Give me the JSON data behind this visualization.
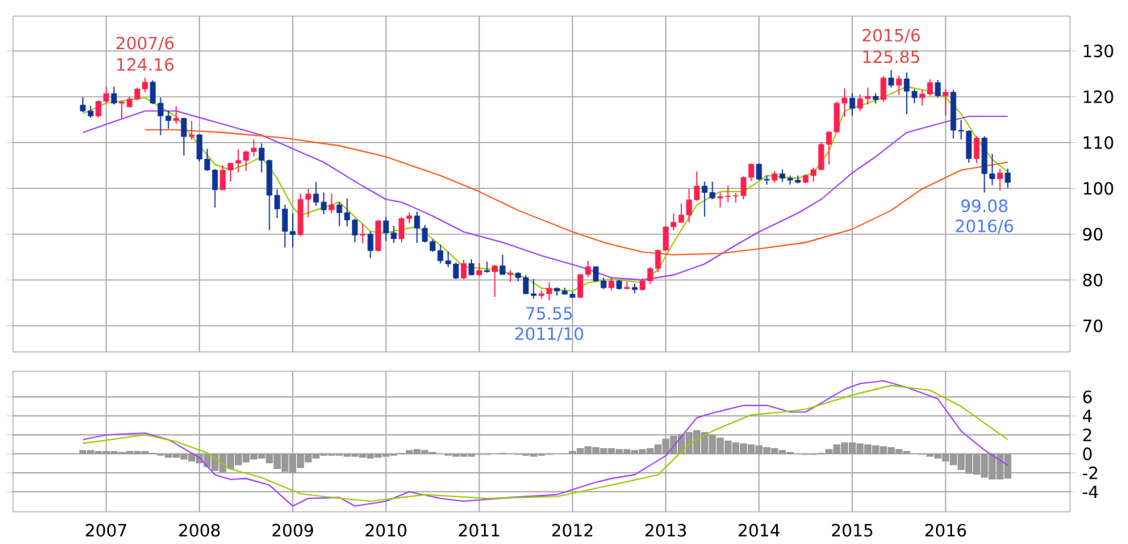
{
  "chart_data": [
    {
      "type": "candlestick",
      "xlim": [
        "2006-01",
        "2017-05"
      ],
      "xticks": [
        "2007",
        "2008",
        "2009",
        "2010",
        "2011",
        "2012",
        "2013",
        "2014",
        "2015",
        "2016"
      ],
      "ylim": [
        64.3,
        137.6
      ],
      "yticks": [
        70,
        80,
        90,
        100,
        110,
        120,
        130
      ],
      "grid": true,
      "tick_labels": "y",
      "x": [
        "2006-10",
        "2006-11",
        "2006-12",
        "2007-01",
        "2007-02",
        "2007-03",
        "2007-04",
        "2007-05",
        "2007-06",
        "2007-07",
        "2007-08",
        "2007-09",
        "2007-10",
        "2007-11",
        "2007-12",
        "2008-01",
        "2008-02",
        "2008-03",
        "2008-04",
        "2008-05",
        "2008-06",
        "2008-07",
        "2008-08",
        "2008-09",
        "2008-10",
        "2008-11",
        "2008-12",
        "2009-01",
        "2009-02",
        "2009-03",
        "2009-04",
        "2009-05",
        "2009-06",
        "2009-07",
        "2009-08",
        "2009-09",
        "2009-10",
        "2009-11",
        "2009-12",
        "2010-01",
        "2010-02",
        "2010-03",
        "2010-04",
        "2010-05",
        "2010-06",
        "2010-07",
        "2010-08",
        "2010-09",
        "2010-10",
        "2010-11",
        "2010-12",
        "2011-01",
        "2011-02",
        "2011-03",
        "2011-04",
        "2011-05",
        "2011-06",
        "2011-07",
        "2011-08",
        "2011-09",
        "2011-10",
        "2011-11",
        "2011-12",
        "2012-01",
        "2012-02",
        "2012-03",
        "2012-04",
        "2012-05",
        "2012-06",
        "2012-07",
        "2012-08",
        "2012-09",
        "2012-10",
        "2012-11",
        "2012-12",
        "2013-01",
        "2013-02",
        "2013-03",
        "2013-04",
        "2013-05",
        "2013-06",
        "2013-07",
        "2013-08",
        "2013-09",
        "2013-10",
        "2013-11",
        "2013-12",
        "2014-01",
        "2014-02",
        "2014-03",
        "2014-04",
        "2014-05",
        "2014-06",
        "2014-07",
        "2014-08",
        "2014-09",
        "2014-10",
        "2014-11",
        "2014-12",
        "2015-01",
        "2015-02",
        "2015-03",
        "2015-04",
        "2015-05",
        "2015-06",
        "2015-07",
        "2015-08",
        "2015-09",
        "2015-10",
        "2015-11",
        "2015-12",
        "2016-01",
        "2016-02",
        "2016-03",
        "2016-04",
        "2016-05",
        "2016-06",
        "2016-07",
        "2016-08",
        "2016-09"
      ],
      "ohlc": [
        [
          118.2,
          119.9,
          116.6,
          116.9
        ],
        [
          116.9,
          118.0,
          115.4,
          115.8
        ],
        [
          115.8,
          119.2,
          115.5,
          119.0
        ],
        [
          119.0,
          122.2,
          118.5,
          120.7
        ],
        [
          120.7,
          122.2,
          118.3,
          118.6
        ],
        [
          118.6,
          119.0,
          115.2,
          118.9
        ],
        [
          117.8,
          120.0,
          117.6,
          119.5
        ],
        [
          119.5,
          122.0,
          119.2,
          121.7
        ],
        [
          121.7,
          124.16,
          121.0,
          123.2
        ],
        [
          123.2,
          123.6,
          118.4,
          118.6
        ],
        [
          118.6,
          119.8,
          111.6,
          115.8
        ],
        [
          115.8,
          117.0,
          113.0,
          114.8
        ],
        [
          114.8,
          117.9,
          114.1,
          115.3
        ],
        [
          115.3,
          115.4,
          107.2,
          111.3
        ],
        [
          111.3,
          114.7,
          110.6,
          111.7
        ],
        [
          111.7,
          111.8,
          105.9,
          106.4
        ],
        [
          106.4,
          108.6,
          103.8,
          104.0
        ],
        [
          104.0,
          104.2,
          95.8,
          99.7
        ],
        [
          99.7,
          105.0,
          99.7,
          104.0
        ],
        [
          104.0,
          105.5,
          101.5,
          105.5
        ],
        [
          105.5,
          108.5,
          103.5,
          106.1
        ],
        [
          106.1,
          108.3,
          103.8,
          108.0
        ],
        [
          108.0,
          110.7,
          107.0,
          108.8
        ],
        [
          108.8,
          109.8,
          103.5,
          106.1
        ],
        [
          106.1,
          106.3,
          90.9,
          98.5
        ],
        [
          98.5,
          99.8,
          93.5,
          95.5
        ],
        [
          95.5,
          96.4,
          87.1,
          90.6
        ],
        [
          90.6,
          94.5,
          87.1,
          89.9
        ],
        [
          89.9,
          98.8,
          89.6,
          97.6
        ],
        [
          97.6,
          100.0,
          93.7,
          98.8
        ],
        [
          98.8,
          101.4,
          96.2,
          97.0
        ],
        [
          97.0,
          99.1,
          94.4,
          95.3
        ],
        [
          95.3,
          98.9,
          94.6,
          96.4
        ],
        [
          96.4,
          97.0,
          91.7,
          94.7
        ],
        [
          94.7,
          97.8,
          91.7,
          93.1
        ],
        [
          93.1,
          93.4,
          88.2,
          89.8
        ],
        [
          89.8,
          92.3,
          88.0,
          90.0
        ],
        [
          90.0,
          90.6,
          84.8,
          86.4
        ],
        [
          86.4,
          93.1,
          86.3,
          92.9
        ],
        [
          92.9,
          93.8,
          88.5,
          90.3
        ],
        [
          90.3,
          91.8,
          88.1,
          89.0
        ],
        [
          89.0,
          93.7,
          88.2,
          93.4
        ],
        [
          93.4,
          94.7,
          92.4,
          94.0
        ],
        [
          94.0,
          94.9,
          88.1,
          91.3
        ],
        [
          91.3,
          92.0,
          88.2,
          88.4
        ],
        [
          88.4,
          88.9,
          86.2,
          86.4
        ],
        [
          86.4,
          87.7,
          83.6,
          84.2
        ],
        [
          84.2,
          86.2,
          82.8,
          83.5
        ],
        [
          83.5,
          83.8,
          80.2,
          80.4
        ],
        [
          80.4,
          84.4,
          80.2,
          83.6
        ],
        [
          83.6,
          84.5,
          81.1,
          81.1
        ],
        [
          81.1,
          83.7,
          80.9,
          82.1
        ],
        [
          82.1,
          84.0,
          81.6,
          81.8
        ],
        [
          81.8,
          83.3,
          76.3,
          83.1
        ],
        [
          83.1,
          85.5,
          81.2,
          81.2
        ],
        [
          81.2,
          82.2,
          79.6,
          81.5
        ],
        [
          81.5,
          81.7,
          79.7,
          80.5
        ],
        [
          80.5,
          81.1,
          76.9,
          77.0
        ],
        [
          77.0,
          80.2,
          75.9,
          76.6
        ],
        [
          76.6,
          77.8,
          75.9,
          77.0
        ],
        [
          77.0,
          79.5,
          75.55,
          78.2
        ],
        [
          78.2,
          78.3,
          76.6,
          77.6
        ],
        [
          77.6,
          78.3,
          76.8,
          76.9
        ],
        [
          76.9,
          77.4,
          76.1,
          76.2
        ],
        [
          76.2,
          81.2,
          76.1,
          81.2
        ],
        [
          81.2,
          84.2,
          80.6,
          82.9
        ],
        [
          82.9,
          82.9,
          79.6,
          79.8
        ],
        [
          79.8,
          80.5,
          78.0,
          78.3
        ],
        [
          78.3,
          80.6,
          77.7,
          79.8
        ],
        [
          79.8,
          80.0,
          77.9,
          78.1
        ],
        [
          78.1,
          79.6,
          78.0,
          78.4
        ],
        [
          78.4,
          79.2,
          77.1,
          77.9
        ],
        [
          77.9,
          80.4,
          77.7,
          79.8
        ],
        [
          79.8,
          82.8,
          79.1,
          82.5
        ],
        [
          82.5,
          86.6,
          81.7,
          86.5
        ],
        [
          86.5,
          91.8,
          86.5,
          91.6
        ],
        [
          91.6,
          94.5,
          90.8,
          92.6
        ],
        [
          92.6,
          96.7,
          92.5,
          94.2
        ],
        [
          94.2,
          99.9,
          92.6,
          97.5
        ],
        [
          97.5,
          103.7,
          97.3,
          100.5
        ],
        [
          100.5,
          101.5,
          93.8,
          99.1
        ],
        [
          99.1,
          101.5,
          97.6,
          97.9
        ],
        [
          97.9,
          99.1,
          95.8,
          98.2
        ],
        [
          98.2,
          100.6,
          97.0,
          98.3
        ],
        [
          98.3,
          99.0,
          96.9,
          98.4
        ],
        [
          98.4,
          102.6,
          97.6,
          102.4
        ],
        [
          102.4,
          105.4,
          101.6,
          105.3
        ],
        [
          105.3,
          105.4,
          101.8,
          102.0
        ],
        [
          102.0,
          102.8,
          100.8,
          101.8
        ],
        [
          101.8,
          103.8,
          101.2,
          103.2
        ],
        [
          103.2,
          104.1,
          101.4,
          102.2
        ],
        [
          102.2,
          102.8,
          100.8,
          101.8
        ],
        [
          101.8,
          102.8,
          101.1,
          101.3
        ],
        [
          101.3,
          103.1,
          101.1,
          102.8
        ],
        [
          102.8,
          104.5,
          101.5,
          104.1
        ],
        [
          104.1,
          110.1,
          104.0,
          109.6
        ],
        [
          109.6,
          112.5,
          105.2,
          112.3
        ],
        [
          112.3,
          118.9,
          112.2,
          118.6
        ],
        [
          118.6,
          121.8,
          115.6,
          119.7
        ],
        [
          119.7,
          120.8,
          115.9,
          117.5
        ],
        [
          117.5,
          120.5,
          116.9,
          119.6
        ],
        [
          119.6,
          122.0,
          118.3,
          120.1
        ],
        [
          120.1,
          120.8,
          118.5,
          119.4
        ],
        [
          119.4,
          124.5,
          118.9,
          124.1
        ],
        [
          124.1,
          125.85,
          122.0,
          122.5
        ],
        [
          122.5,
          124.6,
          120.4,
          123.9
        ],
        [
          123.9,
          125.3,
          116.2,
          121.2
        ],
        [
          121.2,
          121.7,
          118.6,
          119.8
        ],
        [
          119.8,
          121.5,
          118.1,
          120.6
        ],
        [
          120.6,
          123.8,
          120.2,
          123.1
        ],
        [
          123.1,
          123.7,
          119.9,
          120.2
        ],
        [
          120.2,
          121.7,
          115.9,
          121.0
        ],
        [
          121.0,
          121.5,
          110.9,
          112.7
        ],
        [
          112.7,
          114.9,
          110.7,
          112.5
        ],
        [
          112.5,
          112.7,
          105.6,
          106.5
        ],
        [
          106.5,
          111.4,
          105.5,
          111.0
        ],
        [
          111.0,
          111.4,
          99.08,
          103.2
        ],
        [
          103.2,
          107.5,
          100.7,
          102.1
        ],
        [
          102.1,
          104.3,
          99.5,
          103.4
        ],
        [
          103.4,
          104.3,
          100.1,
          101.3
        ]
      ],
      "colors": [
        "#0d3394",
        "#0d3394",
        "#ff1f4f",
        "#ff1f4f",
        "#0d3394",
        "#ff1f4f",
        "#ff1f4f",
        "#ff1f4f",
        "#ff1f4f",
        "#0d3394",
        "#0d3394",
        "#0d3394",
        "#ff1f4f",
        "#0d3394",
        "#ff1f4f",
        "#0d3394",
        "#0d3394",
        "#0d3394",
        "#ff1f4f",
        "#ff1f4f",
        "#ff1f4f",
        "#ff1f4f",
        "#ff1f4f",
        "#0d3394",
        "#0d3394",
        "#0d3394",
        "#0d3394",
        "#0d3394",
        "#ff1f4f",
        "#ff1f4f",
        "#0d3394",
        "#0d3394",
        "#ff1f4f",
        "#0d3394",
        "#0d3394",
        "#0d3394",
        "#ff1f4f",
        "#0d3394",
        "#ff1f4f",
        "#0d3394",
        "#0d3394",
        "#ff1f4f",
        "#ff1f4f",
        "#0d3394",
        "#0d3394",
        "#0d3394",
        "#0d3394",
        "#0d3394",
        "#0d3394",
        "#ff1f4f",
        "#0d3394",
        "#ff1f4f",
        "#0d3394",
        "#ff1f4f",
        "#0d3394",
        "#ff1f4f",
        "#0d3394",
        "#0d3394",
        "#0d3394",
        "#ff1f4f",
        "#ff1f4f",
        "#0d3394",
        "#0d3394",
        "#0d3394",
        "#ff1f4f",
        "#ff1f4f",
        "#0d3394",
        "#0d3394",
        "#ff1f4f",
        "#0d3394",
        "#ff1f4f",
        "#0d3394",
        "#ff1f4f",
        "#ff1f4f",
        "#ff1f4f",
        "#ff1f4f",
        "#ff1f4f",
        "#ff1f4f",
        "#ff1f4f",
        "#ff1f4f",
        "#0d3394",
        "#0d3394",
        "#ff1f4f",
        "#ff1f4f",
        "#ff1f4f",
        "#ff1f4f",
        "#ff1f4f",
        "#0d3394",
        "#0d3394",
        "#ff1f4f",
        "#0d3394",
        "#0d3394",
        "#0d3394",
        "#ff1f4f",
        "#ff1f4f",
        "#ff1f4f",
        "#ff1f4f",
        "#ff1f4f",
        "#ff1f4f",
        "#0d3394",
        "#ff1f4f",
        "#ff1f4f",
        "#0d3394",
        "#ff1f4f",
        "#0d3394",
        "#ff1f4f",
        "#0d3394",
        "#0d3394",
        "#ff1f4f",
        "#ff1f4f",
        "#0d3394",
        "#ff1f4f",
        "#0d3394",
        "#0d3394",
        "#0d3394",
        "#ff1f4f",
        "#0d3394",
        "#0d3394",
        "#ff1f4f",
        "#0d3394"
      ],
      "series": [
        {
          "type": "line",
          "color": "#99cc00",
          "x": [
            "2006-10",
            "2007-01",
            "2007-06",
            "2007-10",
            "2008-01",
            "2008-03",
            "2008-05",
            "2008-07",
            "2008-09",
            "2008-11",
            "2009-01",
            "2009-02",
            "2009-07",
            "2009-11",
            "2010-01",
            "2010-05",
            "2010-08",
            "2010-11",
            "2011-03",
            "2011-07",
            "2011-09",
            "2012-01",
            "2012-03",
            "2012-06",
            "2012-10",
            "2012-12",
            "2013-02",
            "2013-05",
            "2013-08",
            "2013-11",
            "2014-01",
            "2014-02",
            "2014-06",
            "2014-08",
            "2014-10",
            "2014-12",
            "2015-04",
            "2015-08",
            "2015-11",
            "2016-01",
            "2016-03",
            "2016-05",
            "2016-07",
            "2016-09"
          ],
          "values": [
            116.3,
            118.6,
            119.8,
            115.7,
            109.3,
            105.2,
            104.0,
            105.2,
            106.9,
            102.2,
            95.9,
            94.1,
            97.0,
            90.6,
            90.3,
            91.7,
            87.6,
            82.9,
            82.3,
            80.5,
            78.2,
            77.6,
            79.4,
            80.2,
            79.4,
            82.3,
            88.2,
            96.4,
            99.3,
            99.3,
            101.6,
            102.8,
            102.2,
            103.4,
            108.1,
            116.9,
            119.2,
            122.2,
            121.2,
            119.8,
            116.3,
            111.0,
            106.3,
            103.6
          ]
        },
        {
          "type": "line",
          "color": "#a040ff",
          "x": [
            "2006-10",
            "2007-01",
            "2007-06",
            "2007-10",
            "2008-03",
            "2008-09",
            "2009-05",
            "2009-10",
            "2010-01",
            "2010-03",
            "2010-07",
            "2010-11",
            "2011-04",
            "2011-09",
            "2012-02",
            "2012-06",
            "2012-10",
            "2013-02",
            "2013-06",
            "2013-10",
            "2014-01",
            "2014-06",
            "2014-09",
            "2015-01",
            "2015-04",
            "2015-08",
            "2016-01",
            "2016-04",
            "2016-09"
          ],
          "values": [
            112.2,
            114.0,
            116.9,
            116.9,
            114.5,
            111.6,
            105.7,
            100.5,
            97.6,
            97.0,
            94.0,
            90.5,
            88.2,
            85.3,
            82.9,
            80.5,
            80.0,
            81.1,
            83.5,
            87.6,
            90.5,
            94.6,
            97.6,
            103.4,
            106.9,
            112.2,
            114.5,
            115.7,
            115.7
          ]
        },
        {
          "type": "line",
          "color": "#ff5a1a",
          "x": [
            "2007-06",
            "2007-10",
            "2008-04",
            "2008-12",
            "2009-07",
            "2010-01",
            "2010-03",
            "2010-08",
            "2011-01",
            "2011-06",
            "2012-01",
            "2012-05",
            "2012-10",
            "2013-02",
            "2013-08",
            "2014-01",
            "2014-07",
            "2015-01",
            "2015-06",
            "2015-10",
            "2016-03",
            "2016-09"
          ],
          "values": [
            112.8,
            112.8,
            112.2,
            111.0,
            109.3,
            106.9,
            105.7,
            102.8,
            99.3,
            95.2,
            90.5,
            88.2,
            86.1,
            85.5,
            85.8,
            86.8,
            88.2,
            91.1,
            95.2,
            99.9,
            104.0,
            105.7
          ]
        }
      ],
      "annotations": [
        {
          "text": "2007/6",
          "x": "2007-06",
          "y": 124.16
        },
        {
          "text": "124.16",
          "x": "2007-06",
          "y": 124.16
        },
        {
          "text": "75.55",
          "x": "2011-10",
          "y": 75.55
        },
        {
          "text": "2011/10",
          "x": "2011-10",
          "y": 75.55
        },
        {
          "text": "2015/6",
          "x": "2015-06",
          "y": 125.85
        },
        {
          "text": "125.85",
          "x": "2015-06",
          "y": 125.85
        },
        {
          "text": "99.08",
          "x": "2016-06",
          "y": 99.08
        },
        {
          "text": "2016/6",
          "x": "2016-06",
          "y": 99.08
        }
      ]
    },
    {
      "type": "bar",
      "xlim": [
        "2006-01",
        "2017-05"
      ],
      "xticks": [
        "2007",
        "2008",
        "2009",
        "2010",
        "2011",
        "2012",
        "2013",
        "2014",
        "2015",
        "2016"
      ],
      "ylim": [
        -6.1,
        8.7
      ],
      "yticks": [
        -4,
        -2,
        0,
        2,
        4,
        6
      ],
      "grid": true,
      "x": [
        "2006-10",
        "2006-11",
        "2006-12",
        "2007-01",
        "2007-02",
        "2007-03",
        "2007-04",
        "2007-05",
        "2007-06",
        "2007-07",
        "2007-08",
        "2007-09",
        "2007-10",
        "2007-11",
        "2007-12",
        "2008-01",
        "2008-02",
        "2008-03",
        "2008-04",
        "2008-05",
        "2008-06",
        "2008-07",
        "2008-08",
        "2008-09",
        "2008-10",
        "2008-11",
        "2008-12",
        "2009-01",
        "2009-02",
        "2009-03",
        "2009-04",
        "2009-05",
        "2009-06",
        "2009-07",
        "2009-08",
        "2009-09",
        "2009-10",
        "2009-11",
        "2009-12",
        "2010-01",
        "2010-02",
        "2010-03",
        "2010-04",
        "2010-05",
        "2010-06",
        "2010-07",
        "2010-08",
        "2010-09",
        "2010-10",
        "2010-11",
        "2010-12",
        "2011-01",
        "2011-02",
        "2011-03",
        "2011-04",
        "2011-05",
        "2011-06",
        "2011-07",
        "2011-08",
        "2011-09",
        "2011-10",
        "2011-11",
        "2011-12",
        "2012-01",
        "2012-02",
        "2012-03",
        "2012-04",
        "2012-05",
        "2012-06",
        "2012-07",
        "2012-08",
        "2012-09",
        "2012-10",
        "2012-11",
        "2012-12",
        "2013-01",
        "2013-02",
        "2013-03",
        "2013-04",
        "2013-05",
        "2013-06",
        "2013-07",
        "2013-08",
        "2013-09",
        "2013-10",
        "2013-11",
        "2013-12",
        "2014-01",
        "2014-02",
        "2014-03",
        "2014-04",
        "2014-05",
        "2014-06",
        "2014-07",
        "2014-08",
        "2014-09",
        "2014-10",
        "2014-11",
        "2014-12",
        "2015-01",
        "2015-02",
        "2015-03",
        "2015-04",
        "2015-05",
        "2015-06",
        "2015-07",
        "2015-08",
        "2015-09",
        "2015-10",
        "2015-11",
        "2015-12",
        "2016-01",
        "2016-02",
        "2016-03",
        "2016-04",
        "2016-05",
        "2016-06",
        "2016-07",
        "2016-08",
        "2016-09"
      ],
      "series": [
        {
          "type": "bar",
          "color": "#999999",
          "values": [
            0.4,
            0.4,
            0.3,
            0.3,
            0.3,
            0.2,
            0.3,
            0.3,
            0.3,
            0.1,
            -0.2,
            -0.4,
            -0.4,
            -0.6,
            -0.8,
            -1.0,
            -1.4,
            -1.8,
            -2.0,
            -1.6,
            -1.2,
            -0.9,
            -0.6,
            -0.5,
            -1.0,
            -1.6,
            -1.9,
            -2.0,
            -1.5,
            -0.9,
            -0.5,
            -0.2,
            -0.2,
            -0.2,
            -0.3,
            -0.3,
            -0.4,
            -0.5,
            -0.4,
            -0.3,
            -0.2,
            0.1,
            0.4,
            0.5,
            0.4,
            0.2,
            0.0,
            -0.2,
            -0.3,
            -0.3,
            -0.3,
            -0.1,
            -0.1,
            0.0,
            0.1,
            0.0,
            -0.1,
            -0.2,
            -0.3,
            -0.2,
            -0.1,
            0.0,
            0.0,
            0.3,
            0.6,
            0.8,
            0.7,
            0.6,
            0.6,
            0.5,
            0.5,
            0.4,
            0.5,
            0.6,
            1.0,
            1.6,
            1.9,
            2.1,
            2.3,
            2.5,
            2.3,
            2.0,
            1.7,
            1.4,
            1.2,
            1.1,
            1.0,
            0.9,
            0.7,
            0.6,
            0.4,
            0.2,
            0.0,
            -0.1,
            -0.1,
            0.1,
            0.5,
            1.0,
            1.2,
            1.2,
            1.1,
            1.0,
            0.9,
            0.8,
            0.7,
            0.5,
            0.3,
            0.0,
            -0.1,
            -0.3,
            -0.5,
            -0.8,
            -1.2,
            -1.7,
            -2.1,
            -2.2,
            -2.5,
            -2.7,
            -2.7,
            -2.6
          ]
        },
        {
          "type": "line",
          "color": "#a040ff",
          "x": [
            "2006-10",
            "2007-01",
            "2007-06",
            "2007-09",
            "2008-01",
            "2008-03",
            "2008-05",
            "2008-07",
            "2008-10",
            "2009-01",
            "2009-03",
            "2009-07",
            "2009-09",
            "2010-01",
            "2010-04",
            "2010-08",
            "2010-11",
            "2011-05",
            "2011-11",
            "2012-04",
            "2012-06",
            "2012-09",
            "2013-01",
            "2013-05",
            "2013-07",
            "2013-11",
            "2014-02",
            "2014-05",
            "2014-07",
            "2014-12",
            "2015-02",
            "2015-05",
            "2015-08",
            "2015-12",
            "2016-03",
            "2016-06",
            "2016-09"
          ],
          "values": [
            1.5,
            2.0,
            2.2,
            1.5,
            -0.4,
            -2.2,
            -2.7,
            -2.6,
            -3.3,
            -5.5,
            -4.7,
            -4.6,
            -5.5,
            -5.0,
            -4.0,
            -4.7,
            -5.0,
            -4.6,
            -4.3,
            -3.0,
            -2.6,
            -2.2,
            -0.2,
            3.8,
            4.3,
            5.1,
            5.1,
            4.4,
            4.4,
            6.8,
            7.4,
            7.7,
            7.0,
            5.8,
            2.4,
            0.4,
            -1.2
          ]
        },
        {
          "type": "line",
          "color": "#99cc00",
          "x": [
            "2006-10",
            "2007-06",
            "2007-10",
            "2008-02",
            "2008-05",
            "2008-09",
            "2009-02",
            "2009-05",
            "2009-11",
            "2010-06",
            "2011-02",
            "2011-11",
            "2012-06",
            "2012-12",
            "2013-04",
            "2013-07",
            "2013-12",
            "2014-04",
            "2014-07",
            "2015-01",
            "2015-06",
            "2015-11",
            "2016-03",
            "2016-09"
          ],
          "values": [
            1.1,
            2.0,
            1.3,
            0.1,
            -1.6,
            -2.5,
            -4.2,
            -4.5,
            -5.0,
            -4.3,
            -4.7,
            -4.5,
            -3.3,
            -2.2,
            1.0,
            2.4,
            4.1,
            4.4,
            4.7,
            6.2,
            7.2,
            6.7,
            5.0,
            1.5
          ]
        }
      ]
    }
  ]
}
